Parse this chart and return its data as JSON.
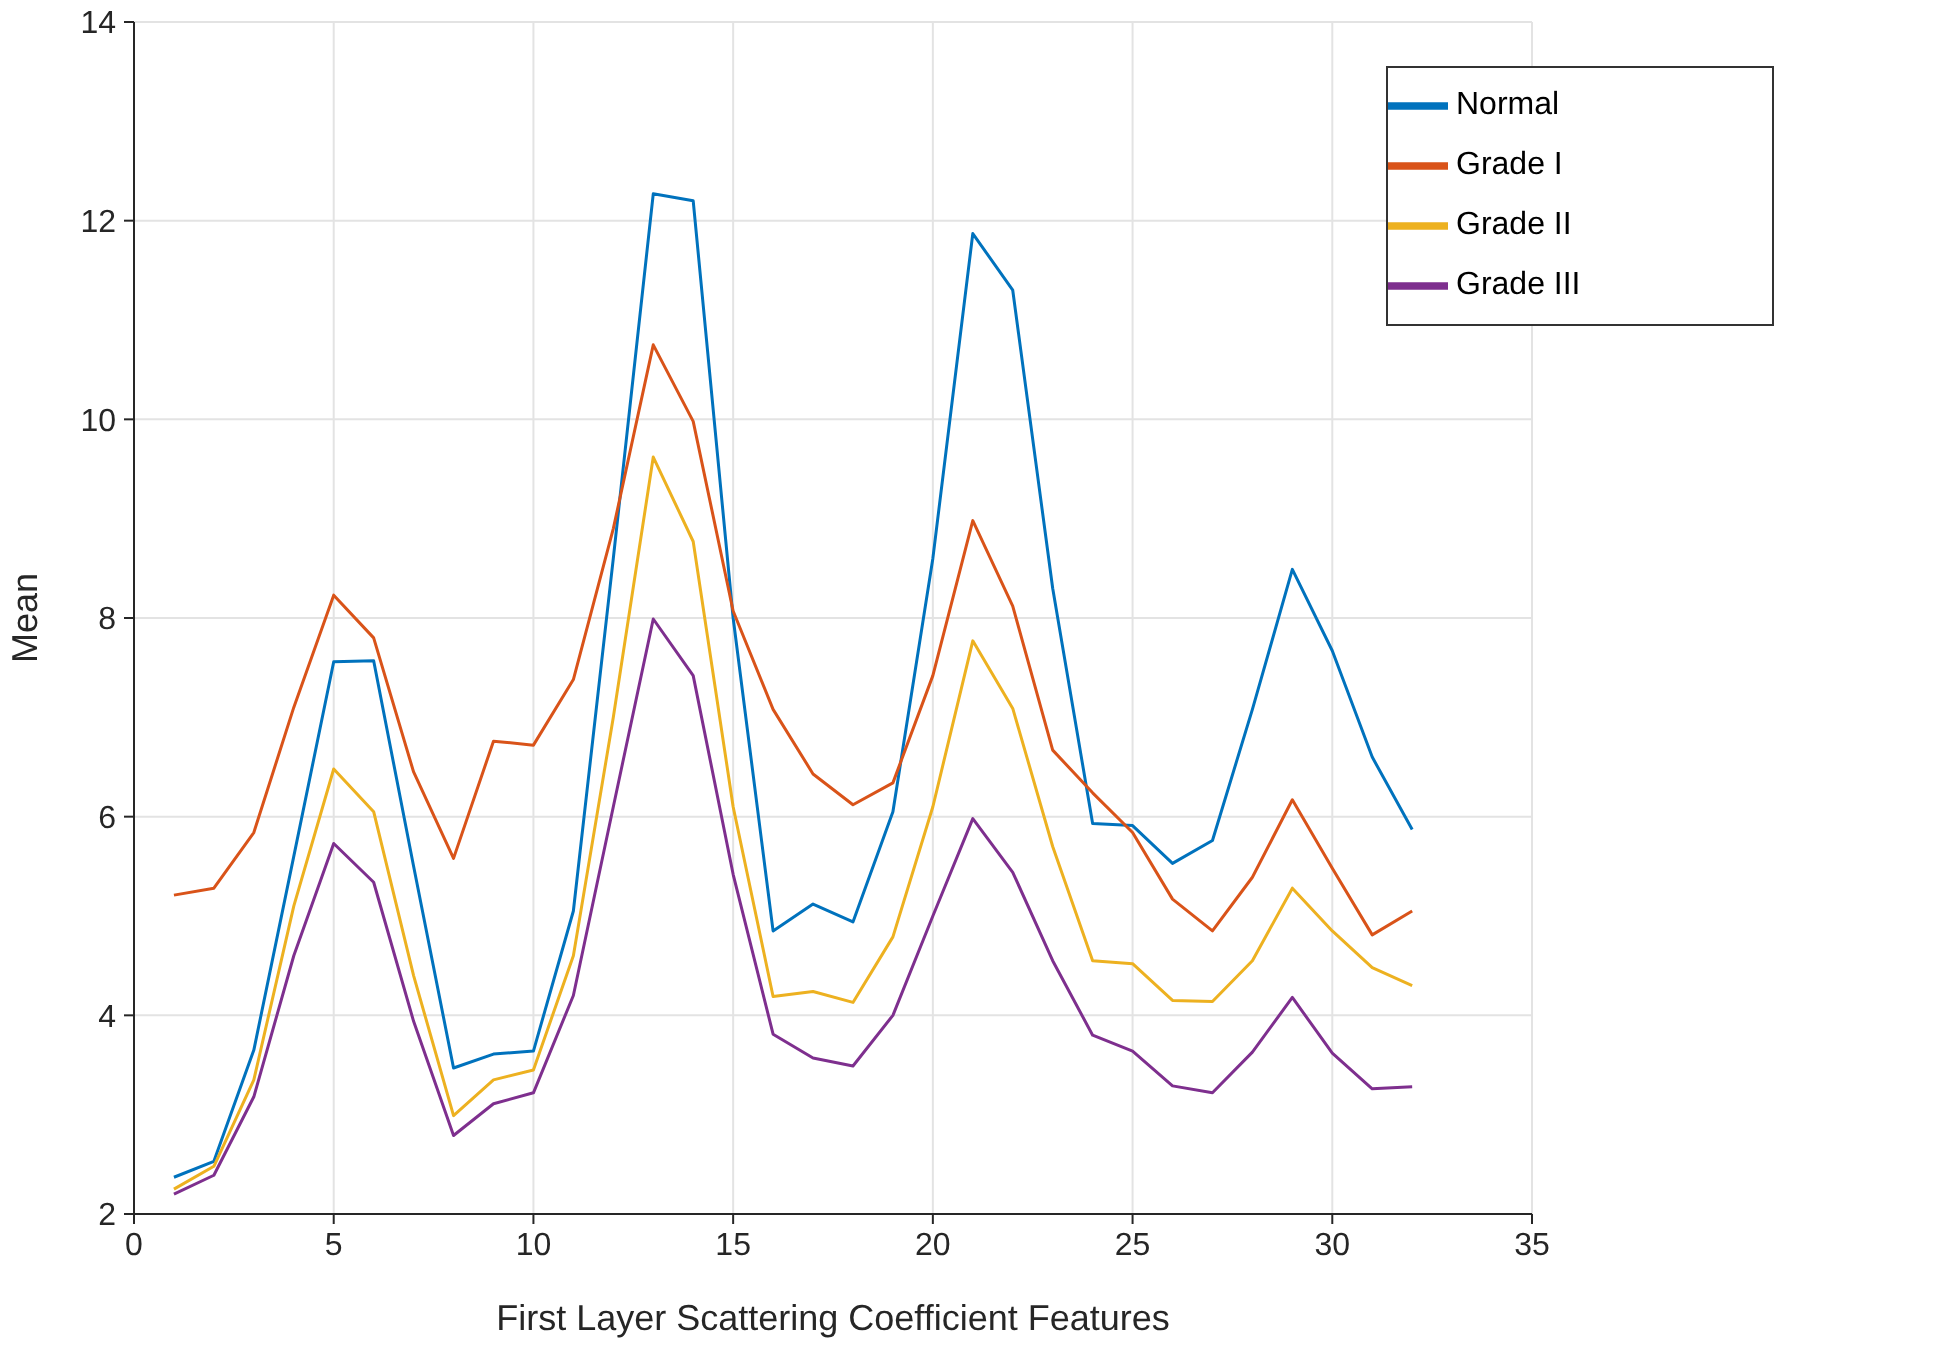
{
  "chart_data": {
    "type": "line",
    "xlabel": "First Layer Scattering Coefficient Features",
    "ylabel": "Mean",
    "x": [
      1,
      2,
      3,
      4,
      5,
      6,
      7,
      8,
      9,
      10,
      11,
      12,
      13,
      14,
      15,
      16,
      17,
      18,
      19,
      20,
      21,
      22,
      23,
      24,
      25,
      26,
      27,
      28,
      29,
      30,
      31,
      32
    ],
    "series": [
      {
        "name": "Normal",
        "color": "#0072bd",
        "values": [
          2.37,
          2.53,
          3.65,
          5.6,
          7.56,
          7.57,
          5.5,
          3.47,
          3.61,
          3.64,
          5.05,
          8.6,
          12.27,
          12.2,
          8.0,
          4.85,
          5.12,
          4.94,
          6.05,
          8.6,
          11.87,
          11.3,
          8.3,
          5.93,
          5.91,
          5.53,
          5.76,
          7.08,
          8.49,
          7.67,
          6.6,
          5.87
        ]
      },
      {
        "name": "Grade I",
        "color": "#d95319",
        "values": [
          5.21,
          5.28,
          5.84,
          7.1,
          8.23,
          7.8,
          6.45,
          5.58,
          6.76,
          6.72,
          7.38,
          8.9,
          10.75,
          9.98,
          8.07,
          7.08,
          6.43,
          6.12,
          6.34,
          7.42,
          8.98,
          8.12,
          6.67,
          6.24,
          5.84,
          5.17,
          4.85,
          5.39,
          6.17,
          5.48,
          4.81,
          5.05
        ]
      },
      {
        "name": "Grade II",
        "color": "#edb120",
        "values": [
          2.25,
          2.48,
          3.35,
          5.1,
          6.48,
          6.05,
          4.4,
          2.99,
          3.35,
          3.45,
          4.6,
          7.0,
          9.62,
          8.77,
          6.1,
          4.19,
          4.24,
          4.13,
          4.79,
          6.1,
          7.77,
          7.09,
          5.7,
          4.55,
          4.52,
          4.15,
          4.14,
          4.55,
          5.28,
          4.85,
          4.48,
          4.3
        ]
      },
      {
        "name": "Grade III",
        "color": "#7e2f8e",
        "values": [
          2.2,
          2.39,
          3.18,
          4.6,
          5.73,
          5.34,
          3.94,
          2.79,
          3.11,
          3.22,
          4.2,
          6.1,
          7.99,
          7.42,
          5.42,
          3.81,
          3.57,
          3.49,
          4.0,
          5.0,
          5.98,
          5.44,
          4.55,
          3.8,
          3.64,
          3.29,
          3.22,
          3.63,
          4.18,
          3.62,
          3.26,
          3.28
        ]
      }
    ],
    "xlim": [
      0,
      35
    ],
    "xticks": [
      0,
      5,
      10,
      15,
      20,
      25,
      30,
      35
    ],
    "ylim": [
      2,
      14
    ],
    "yticks": [
      2,
      4,
      6,
      8,
      10,
      12,
      14
    ],
    "grid": true,
    "legend": "top right",
    "marker": "none",
    "line_style": "solid"
  }
}
